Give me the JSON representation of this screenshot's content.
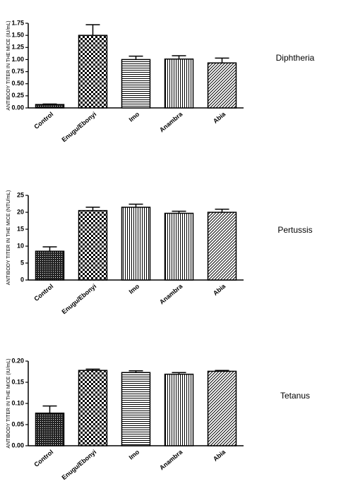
{
  "chart_data": [
    {
      "type": "bar",
      "title": "Diphtheria",
      "y_label": "ANTIBODY TITER IN THE MICE (IU/mL)",
      "categories": [
        "Control",
        "Enugu/Ebonyi",
        "Imo",
        "Anambra",
        "Abia"
      ],
      "values": [
        0.07,
        1.5,
        1.0,
        1.01,
        0.93
      ],
      "errors": [
        0.01,
        0.22,
        0.07,
        0.07,
        0.1
      ],
      "patterns": [
        "crosshatch",
        "checker",
        "horizontal",
        "vertical",
        "diagonal"
      ],
      "ylim": [
        0,
        1.75
      ],
      "yticks": [
        {
          "value": 0,
          "label": "0.00"
        },
        {
          "value": 0.25,
          "label": "0.25"
        },
        {
          "value": 0.5,
          "label": "0.50"
        },
        {
          "value": 0.75,
          "label": "0.75"
        },
        {
          "value": 1,
          "label": "1.00"
        },
        {
          "value": 1.25,
          "label": "1.25"
        },
        {
          "value": 1.5,
          "label": "1.50"
        },
        {
          "value": 1.75,
          "label": "1.75"
        }
      ]
    },
    {
      "type": "bar",
      "title": "Pertussis",
      "y_label": "ANTIBODY TITER IN THE MICE (NTU/mL)",
      "categories": [
        "Control",
        "Enugu/Ebonyi",
        "Imo",
        "Anambra",
        "Abia"
      ],
      "values": [
        8.5,
        20.5,
        21.5,
        19.7,
        20
      ],
      "errors": [
        1.3,
        1.0,
        0.9,
        0.6,
        0.9
      ],
      "patterns": [
        "crosshatch",
        "checker",
        "vertical",
        "vertical",
        "diagonal"
      ],
      "ylim": [
        0,
        25
      ],
      "yticks": [
        0,
        5,
        10,
        15,
        20,
        25
      ]
    },
    {
      "type": "bar",
      "title": "Tetanus",
      "y_label": "ANTIBODY TITER IN THE MICE (IU/mL)",
      "categories": [
        "Control",
        "Enugu/Ebonyi",
        "Imo",
        "Anambra",
        "Abia"
      ],
      "values": [
        0.077,
        0.178,
        0.173,
        0.169,
        0.176
      ],
      "errors": [
        0.017,
        0.003,
        0.004,
        0.004,
        0.002
      ],
      "patterns": [
        "crosshatch",
        "checker",
        "horizontal",
        "vertical",
        "diagonal"
      ],
      "ylim": [
        0,
        0.2
      ],
      "yticks": [
        {
          "value": 0,
          "label": "0.00"
        },
        {
          "value": 0.05,
          "label": "0.05"
        },
        {
          "value": 0.1,
          "label": "0.10"
        },
        {
          "value": 0.15,
          "label": "0.15"
        },
        {
          "value": 0.2,
          "label": "0.20"
        }
      ]
    }
  ]
}
